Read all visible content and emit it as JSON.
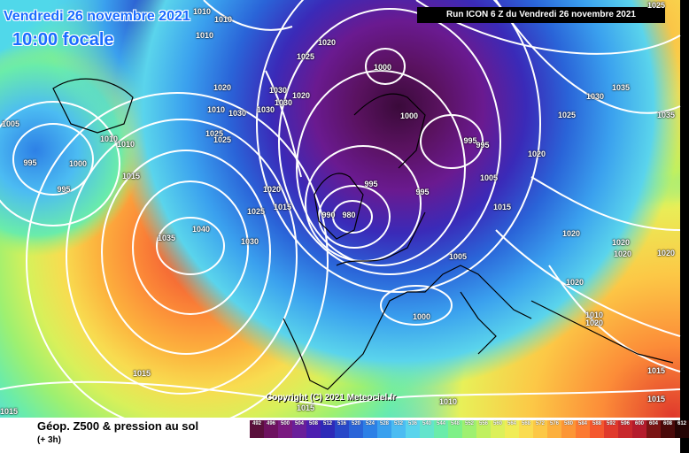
{
  "header": {
    "date": "Vendredi 26 novembre 2021",
    "time": "10:00 focale",
    "run": "Run ICON 6 Z du Vendredi 26 novembre 2021"
  },
  "copyright": "Copyright (C) 2021 Meteociel.fr",
  "legend": {
    "title": "Géop. Z500 & pression au sol",
    "subtitle": "(+ 3h)",
    "scale_values": [
      "492",
      "496",
      "500",
      "504",
      "508",
      "512",
      "516",
      "520",
      "524",
      "528",
      "532",
      "536",
      "540",
      "544",
      "548",
      "552",
      "556",
      "560",
      "564",
      "568",
      "572",
      "576",
      "580",
      "584",
      "588",
      "592",
      "596",
      "600",
      "604",
      "608",
      "612"
    ],
    "scale_colors": [
      "#5a0f3c",
      "#6e1260",
      "#7a1a80",
      "#6a1f9a",
      "#4c1fb0",
      "#2e2ab8",
      "#2848c8",
      "#2a64d8",
      "#2d80e6",
      "#3aa0ee",
      "#4cbcf2",
      "#5ad4ec",
      "#64e4cc",
      "#6aecaa",
      "#7ef088",
      "#9ef070",
      "#c0f060",
      "#dcf05a",
      "#f0ec56",
      "#fadc50",
      "#fcc846",
      "#fcb03e",
      "#fc9636",
      "#fc7a32",
      "#f4582e",
      "#e03a2c",
      "#c8282c",
      "#b41c2c",
      "#7a1414",
      "#4a0a0a",
      "#240404"
    ]
  },
  "isobars": [
    "1010",
    "1010",
    "1010",
    "1020",
    "1025",
    "1020",
    "1030",
    "1030",
    "1030",
    "1010",
    "1025",
    "1025",
    "1005",
    "1010",
    "1010",
    "995",
    "1000",
    "995",
    "1015",
    "1035",
    "1040",
    "1030",
    "1025",
    "1015",
    "1020",
    "1020",
    "1000",
    "1000",
    "995",
    "995",
    "995",
    "995",
    "990",
    "980",
    "1005",
    "1015",
    "1005",
    "1030",
    "1025",
    "1035",
    "1035",
    "1020",
    "1020",
    "1020",
    "1020",
    "1020",
    "1020",
    "1010",
    "1015",
    "1015",
    "1000",
    "1010",
    "1015",
    "1015",
    "1015",
    "1020",
    "1025",
    "1030"
  ]
}
